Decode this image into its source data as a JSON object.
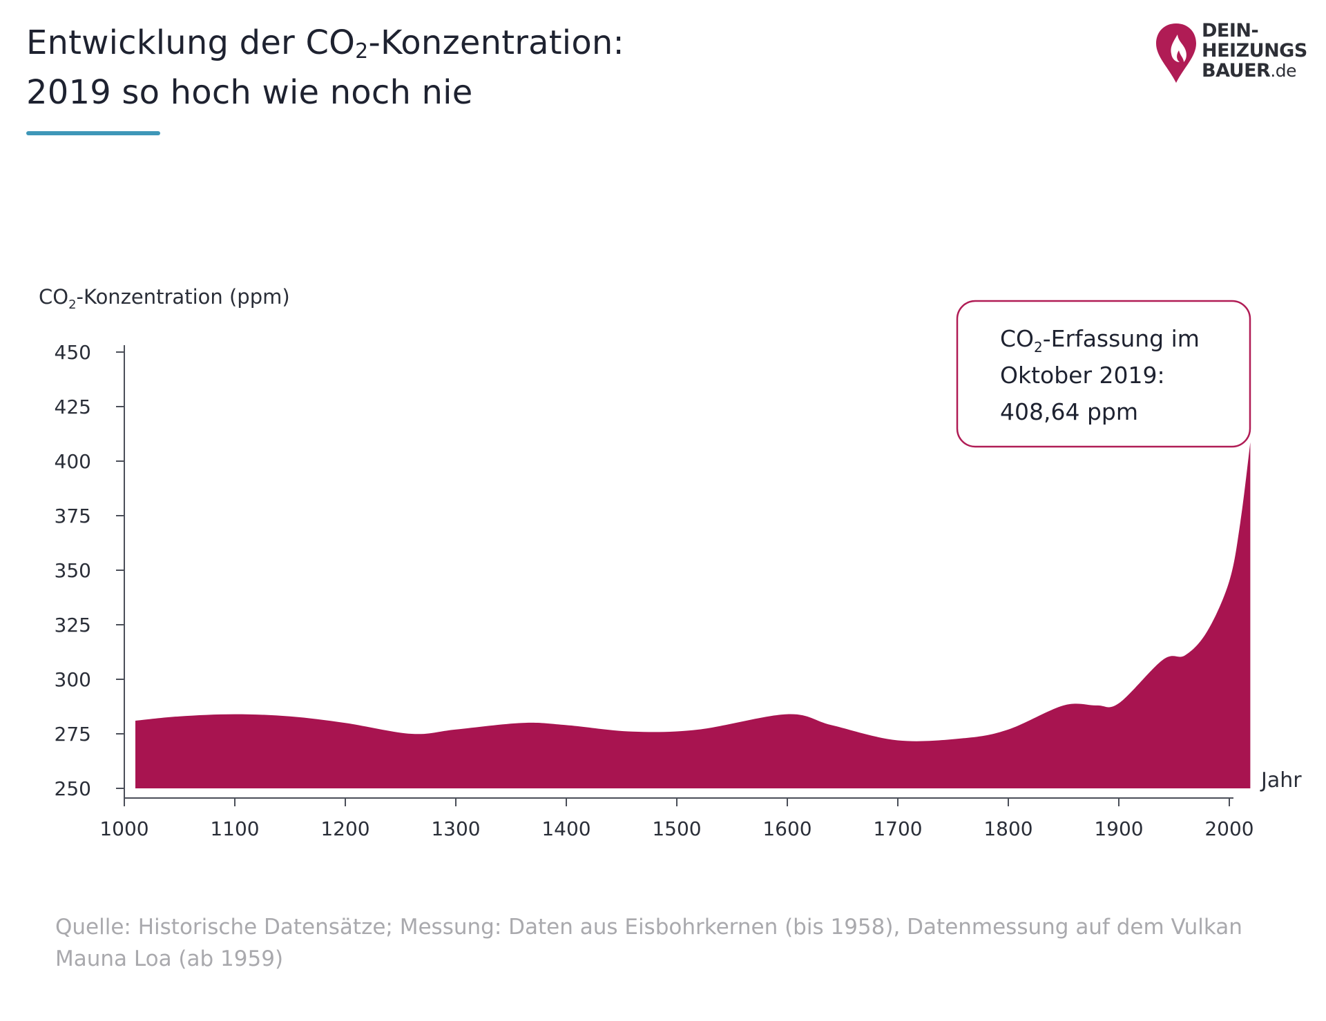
{
  "title": {
    "line1_prefix": "Entwicklung der CO",
    "line1_sub": "2",
    "line1_suffix": "-Konzentration:",
    "line2": "2019 so hoch wie noch nie"
  },
  "logo": {
    "line1": "DEIN-",
    "line2": "HEIZUNGS",
    "line3": "BAUER",
    "line3_tld": ".de"
  },
  "colors": {
    "area_fill": "#a81450",
    "callout_border": "#b01c55",
    "title_rule": "#3f97b8",
    "logo_pin": "#b01c55"
  },
  "chart_data": {
    "type": "area",
    "ylabel_prefix": "CO",
    "ylabel_sub": "2",
    "ylabel_suffix": "-Konzentration (ppm)",
    "xlabel": "Jahr",
    "x_ticks": [
      1000,
      1100,
      1200,
      1300,
      1400,
      1500,
      1600,
      1700,
      1800,
      1900,
      2000
    ],
    "y_ticks": [
      250,
      275,
      300,
      325,
      350,
      375,
      400,
      425,
      450
    ],
    "xlim": [
      1000,
      2019
    ],
    "ylim": [
      250,
      450
    ],
    "grid": false,
    "legend": "none",
    "series": [
      {
        "x": [
          1010,
          1050,
          1100,
          1150,
          1200,
          1260,
          1300,
          1360,
          1400,
          1460,
          1520,
          1600,
          1640,
          1700,
          1760,
          1800,
          1850,
          1880,
          1900,
          1940,
          1960,
          1980,
          2000,
          2010,
          2019
        ],
        "y": [
          281,
          283,
          284,
          283,
          280,
          275,
          277,
          280,
          279,
          276,
          277,
          284,
          279,
          272,
          273,
          277,
          288,
          288,
          289,
          309,
          311,
          322,
          345,
          372,
          408.64
        ]
      }
    ],
    "annotation": {
      "x": 2019,
      "y": 408.64,
      "line1_prefix": "CO",
      "line1_sub": "2",
      "line1_suffix": "-Erfassung im",
      "line2": "Oktober 2019:",
      "line3": "408,64 ppm"
    }
  },
  "source": "Quelle: Historische Datensätze; Messung: Daten aus Eisbohrkernen (bis 1958), Datenmessung auf dem Vulkan Mauna Loa (ab 1959)"
}
